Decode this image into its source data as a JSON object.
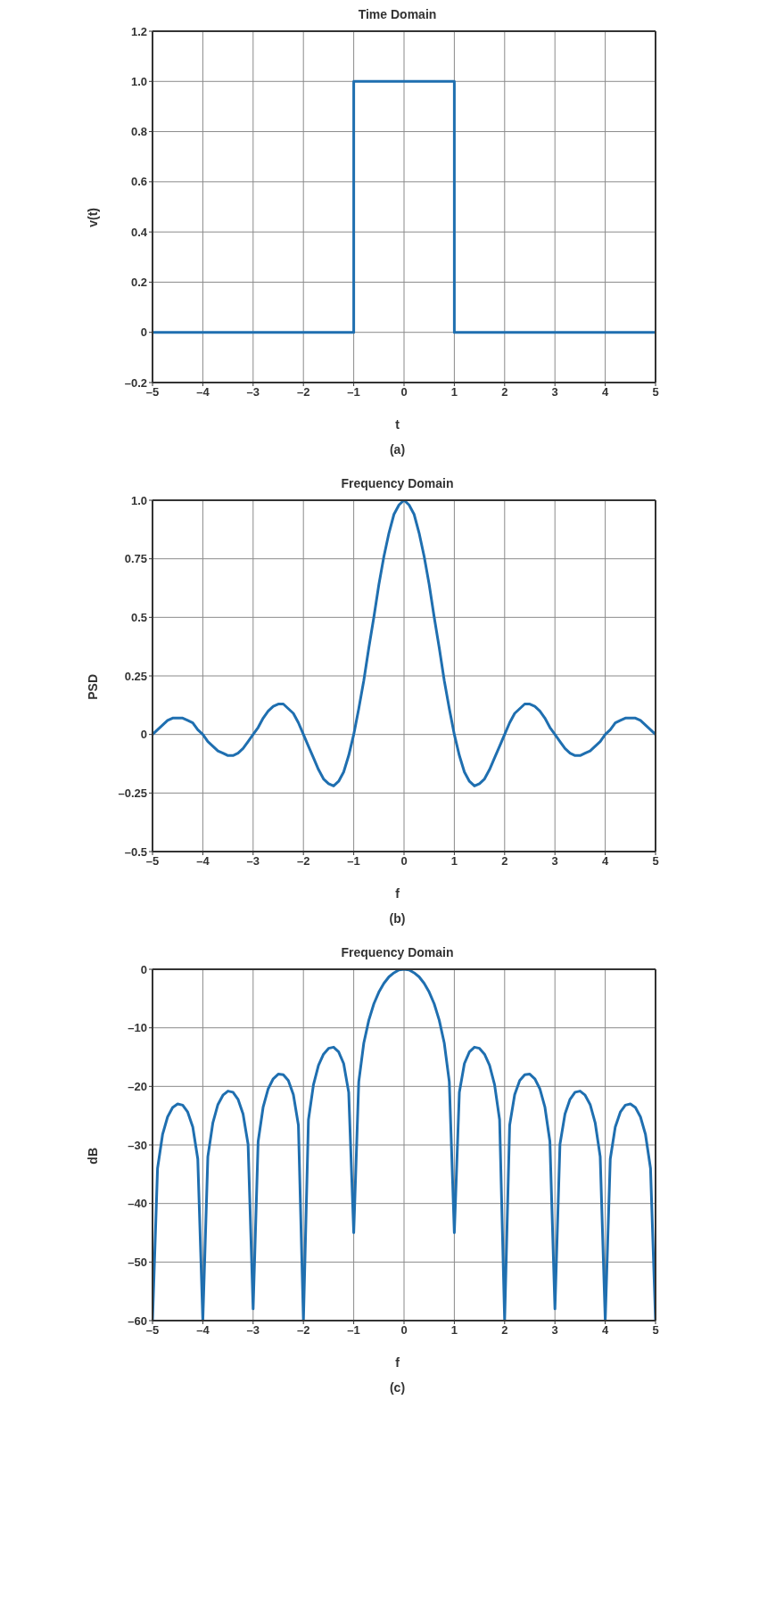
{
  "chart_data": [
    {
      "type": "line",
      "title": "Time Domain",
      "xlabel": "t",
      "ylabel": "v(t)",
      "annotations": [
        "(a)"
      ],
      "grid": true,
      "marker": "none",
      "line_style": "solid",
      "xlim": [
        -5,
        5
      ],
      "xticks": [
        {
          "value": -5,
          "label": "–5"
        },
        {
          "value": -4,
          "label": "–4"
        },
        {
          "value": -3,
          "label": "–3"
        },
        {
          "value": -2,
          "label": "–2"
        },
        {
          "value": -1,
          "label": "–1"
        },
        0,
        1,
        2,
        3,
        4,
        5
      ],
      "ylim": [
        -0.2,
        1.2
      ],
      "yticks": [
        {
          "value": -0.2,
          "label": "–0.2"
        },
        0,
        0.2,
        0.4,
        0.6,
        0.8,
        {
          "value": 1,
          "label": "1.0"
        },
        1.2
      ],
      "series": [
        {
          "color": "#1f6fb0",
          "x": [
            -5,
            -1,
            -1,
            1,
            1,
            5
          ],
          "values": [
            0,
            0,
            1,
            1,
            0,
            0
          ]
        }
      ]
    },
    {
      "type": "line",
      "title": "Frequency Domain",
      "xlabel": "f",
      "ylabel": "PSD",
      "annotations": [
        "(b)"
      ],
      "grid": true,
      "marker": "none",
      "line_style": "solid",
      "xlim": [
        -5,
        5
      ],
      "xticks": [
        {
          "value": -5,
          "label": "–5"
        },
        {
          "value": -4,
          "label": "–4"
        },
        {
          "value": -3,
          "label": "–3"
        },
        {
          "value": -2,
          "label": "–2"
        },
        {
          "value": -1,
          "label": "–1"
        },
        0,
        1,
        2,
        3,
        4,
        5
      ],
      "ylim": [
        -0.5,
        1
      ],
      "yticks": [
        {
          "value": -0.5,
          "label": "–0.5"
        },
        {
          "value": -0.25,
          "label": "–0.25"
        },
        0,
        0.25,
        0.5,
        0.75,
        {
          "value": 1,
          "label": "1.0"
        }
      ],
      "series": [
        {
          "color": "#1f6fb0",
          "x": [
            -5,
            -4.9,
            -4.8,
            -4.7,
            -4.6,
            -4.5,
            -4.4,
            -4.3,
            -4.2,
            -4.1,
            -4,
            -3.9,
            -3.8,
            -3.7,
            -3.6,
            -3.5,
            -3.4,
            -3.3,
            -3.2,
            -3.1,
            -3,
            -2.9,
            -2.8,
            -2.7,
            -2.6,
            -2.5,
            -2.4,
            -2.3,
            -2.2,
            -2.1,
            -2,
            -1.9,
            -1.8,
            -1.7,
            -1.6,
            -1.5,
            -1.4,
            -1.3,
            -1.2,
            -1.1,
            -1,
            -0.9,
            -0.8,
            -0.7,
            -0.6,
            -0.5,
            -0.4,
            -0.3,
            -0.2,
            -0.1,
            0,
            0.1,
            0.2,
            0.3,
            0.4,
            0.5,
            0.6,
            0.7,
            0.8,
            0.9,
            1,
            1.1,
            1.2,
            1.3,
            1.4,
            1.5,
            1.6,
            1.7,
            1.8,
            1.9,
            2,
            2.1,
            2.2,
            2.3,
            2.4,
            2.5,
            2.6,
            2.7,
            2.8,
            2.9,
            3,
            3.1,
            3.2,
            3.3,
            3.4,
            3.5,
            3.6,
            3.7,
            3.8,
            3.9,
            4,
            4.1,
            4.2,
            4.3,
            4.4,
            4.5,
            4.6,
            4.7,
            4.8,
            4.9,
            5
          ],
          "values": [
            0,
            0.02,
            0.04,
            0.06,
            0.07,
            0.07,
            0.07,
            0.06,
            0.05,
            0.02,
            0,
            -0.03,
            -0.05,
            -0.07,
            -0.08,
            -0.09,
            -0.09,
            -0.08,
            -0.06,
            -0.03,
            0,
            0.03,
            0.07,
            0.1,
            0.12,
            0.13,
            0.13,
            0.11,
            0.09,
            0.05,
            0,
            -0.05,
            -0.1,
            -0.15,
            -0.19,
            -0.21,
            -0.22,
            -0.2,
            -0.16,
            -0.09,
            0,
            0.11,
            0.23,
            0.37,
            0.5,
            0.64,
            0.76,
            0.86,
            0.94,
            0.98,
            1,
            0.98,
            0.94,
            0.86,
            0.76,
            0.64,
            0.5,
            0.37,
            0.23,
            0.11,
            0,
            -0.09,
            -0.16,
            -0.2,
            -0.22,
            -0.21,
            -0.19,
            -0.15,
            -0.1,
            -0.05,
            0,
            0.05,
            0.09,
            0.11,
            0.13,
            0.13,
            0.12,
            0.1,
            0.07,
            0.03,
            0,
            -0.03,
            -0.06,
            -0.08,
            -0.09,
            -0.09,
            -0.08,
            -0.07,
            -0.05,
            -0.03,
            0,
            0.02,
            0.05,
            0.06,
            0.07,
            0.07,
            0.07,
            0.06,
            0.04,
            0.02,
            0
          ]
        }
      ]
    },
    {
      "type": "line",
      "title": "Frequency Domain",
      "xlabel": "f",
      "ylabel": "dB",
      "annotations": [
        "(c)"
      ],
      "grid": true,
      "marker": "none",
      "line_style": "solid",
      "xlim": [
        -5,
        5
      ],
      "xticks": [
        {
          "value": -5,
          "label": "–5"
        },
        {
          "value": -4,
          "label": "–4"
        },
        {
          "value": -3,
          "label": "–3"
        },
        {
          "value": -2,
          "label": "–2"
        },
        {
          "value": -1,
          "label": "–1"
        },
        0,
        1,
        2,
        3,
        4,
        5
      ],
      "ylim": [
        -60,
        0
      ],
      "yticks": [
        {
          "value": -60,
          "label": "–60"
        },
        {
          "value": -50,
          "label": "–50"
        },
        {
          "value": -40,
          "label": "–40"
        },
        {
          "value": -30,
          "label": "–30"
        },
        {
          "value": -20,
          "label": "–20"
        },
        {
          "value": -10,
          "label": "–10"
        },
        0
      ],
      "series": [
        {
          "color": "#1f6fb0",
          "x": [
            -5,
            -4.9,
            -4.8,
            -4.7,
            -4.6,
            -4.5,
            -4.4,
            -4.3,
            -4.2,
            -4.1,
            -4,
            -3.9,
            -3.8,
            -3.7,
            -3.6,
            -3.5,
            -3.4,
            -3.3,
            -3.2,
            -3.1,
            -3,
            -2.9,
            -2.8,
            -2.7,
            -2.6,
            -2.5,
            -2.4,
            -2.3,
            -2.2,
            -2.1,
            -2,
            -1.9,
            -1.8,
            -1.7,
            -1.6,
            -1.5,
            -1.4,
            -1.3,
            -1.2,
            -1.1,
            -1,
            -0.9,
            -0.8,
            -0.7,
            -0.6,
            -0.5,
            -0.4,
            -0.3,
            -0.2,
            -0.1,
            0,
            0.1,
            0.2,
            0.3,
            0.4,
            0.5,
            0.6,
            0.7,
            0.8,
            0.9,
            1,
            1.1,
            1.2,
            1.3,
            1.4,
            1.5,
            1.6,
            1.7,
            1.8,
            1.9,
            2,
            2.1,
            2.2,
            2.3,
            2.4,
            2.5,
            2.6,
            2.7,
            2.8,
            2.9,
            3,
            3.1,
            3.2,
            3.3,
            3.4,
            3.5,
            3.6,
            3.7,
            3.8,
            3.9,
            4,
            4.1,
            4.2,
            4.3,
            4.4,
            4.5,
            4.6,
            4.7,
            4.8,
            4.9,
            5
          ],
          "values": [
            -60,
            -34,
            -28.2,
            -25.2,
            -23.6,
            -23,
            -23.2,
            -24.4,
            -26.9,
            -32.4,
            -60,
            -32,
            -26.2,
            -23.1,
            -21.5,
            -20.8,
            -21,
            -22.2,
            -24.7,
            -29.9,
            -58,
            -29.4,
            -23.5,
            -20.4,
            -18.7,
            -17.9,
            -18,
            -19,
            -21.4,
            -26.6,
            -60,
            -25.7,
            -19.7,
            -16.4,
            -14.5,
            -13.5,
            -13.3,
            -14.1,
            -16.1,
            -21,
            -45,
            -19.2,
            -12.6,
            -8.7,
            -5.9,
            -3.9,
            -2.4,
            -1.3,
            -0.6,
            -0.1,
            0,
            -0.1,
            -0.6,
            -1.3,
            -2.4,
            -3.9,
            -5.9,
            -8.7,
            -12.6,
            -19.2,
            -45,
            -21,
            -16.1,
            -14.1,
            -13.3,
            -13.5,
            -14.5,
            -16.4,
            -19.7,
            -25.7,
            -60,
            -26.6,
            -21.4,
            -19,
            -18,
            -17.9,
            -18.7,
            -20.4,
            -23.5,
            -29.4,
            -58,
            -29.9,
            -24.7,
            -22.2,
            -21,
            -20.8,
            -21.5,
            -23.1,
            -26.2,
            -32,
            -60,
            -32.4,
            -26.9,
            -24.4,
            -23.2,
            -23,
            -23.6,
            -25.2,
            -28.2,
            -34,
            -60
          ]
        }
      ]
    }
  ]
}
